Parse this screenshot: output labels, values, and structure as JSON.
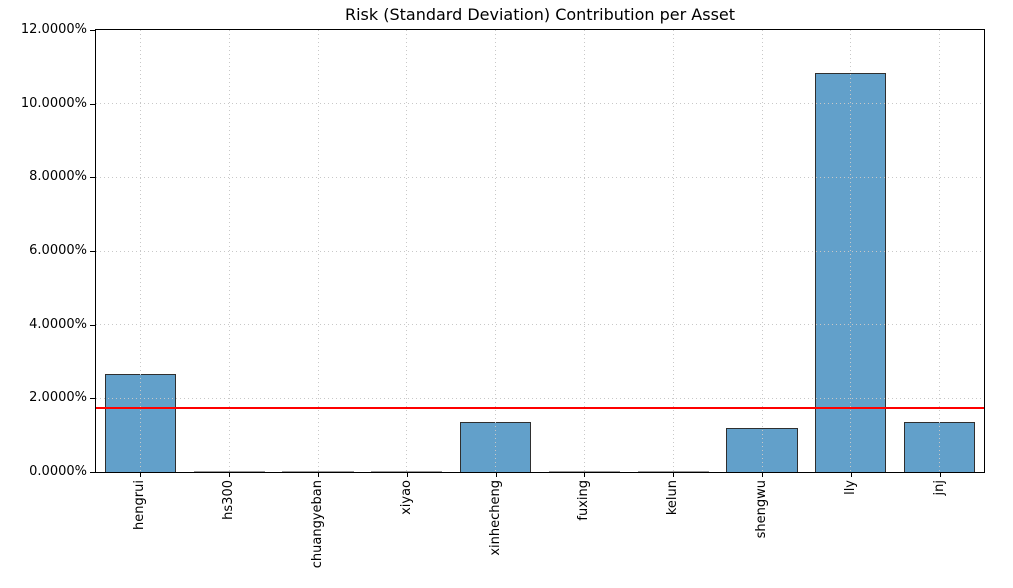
{
  "chart_data": {
    "type": "bar",
    "title": "Risk (Standard Deviation) Contribution per Asset",
    "xlabel": "",
    "ylabel": "",
    "categories": [
      "hengrui",
      "hs300",
      "chuangyeban",
      "xiyao",
      "xinhecheng",
      "fuxing",
      "kelun",
      "shengwu",
      "lly",
      "jnj"
    ],
    "values": [
      2.66,
      0.01,
      0.01,
      0.01,
      1.37,
      0.01,
      0.01,
      1.2,
      10.82,
      1.36
    ],
    "unit": "%",
    "ylim": [
      0,
      12
    ],
    "ytick_values": [
      0,
      2,
      4,
      6,
      8,
      10,
      12
    ],
    "ytick_labels": [
      "0.0000%",
      "2.0000%",
      "4.0000%",
      "6.0000%",
      "8.0000%",
      "10.0000%",
      "12.0000%"
    ],
    "grid": "dotted-both-axes",
    "legend": "none",
    "bar_color": "#62A0CA",
    "bar_edge_color": "#2f2f2f",
    "grid_color": "#c8c8c8",
    "reference_line": {
      "value": 1.74,
      "color": "#ff0000"
    }
  }
}
